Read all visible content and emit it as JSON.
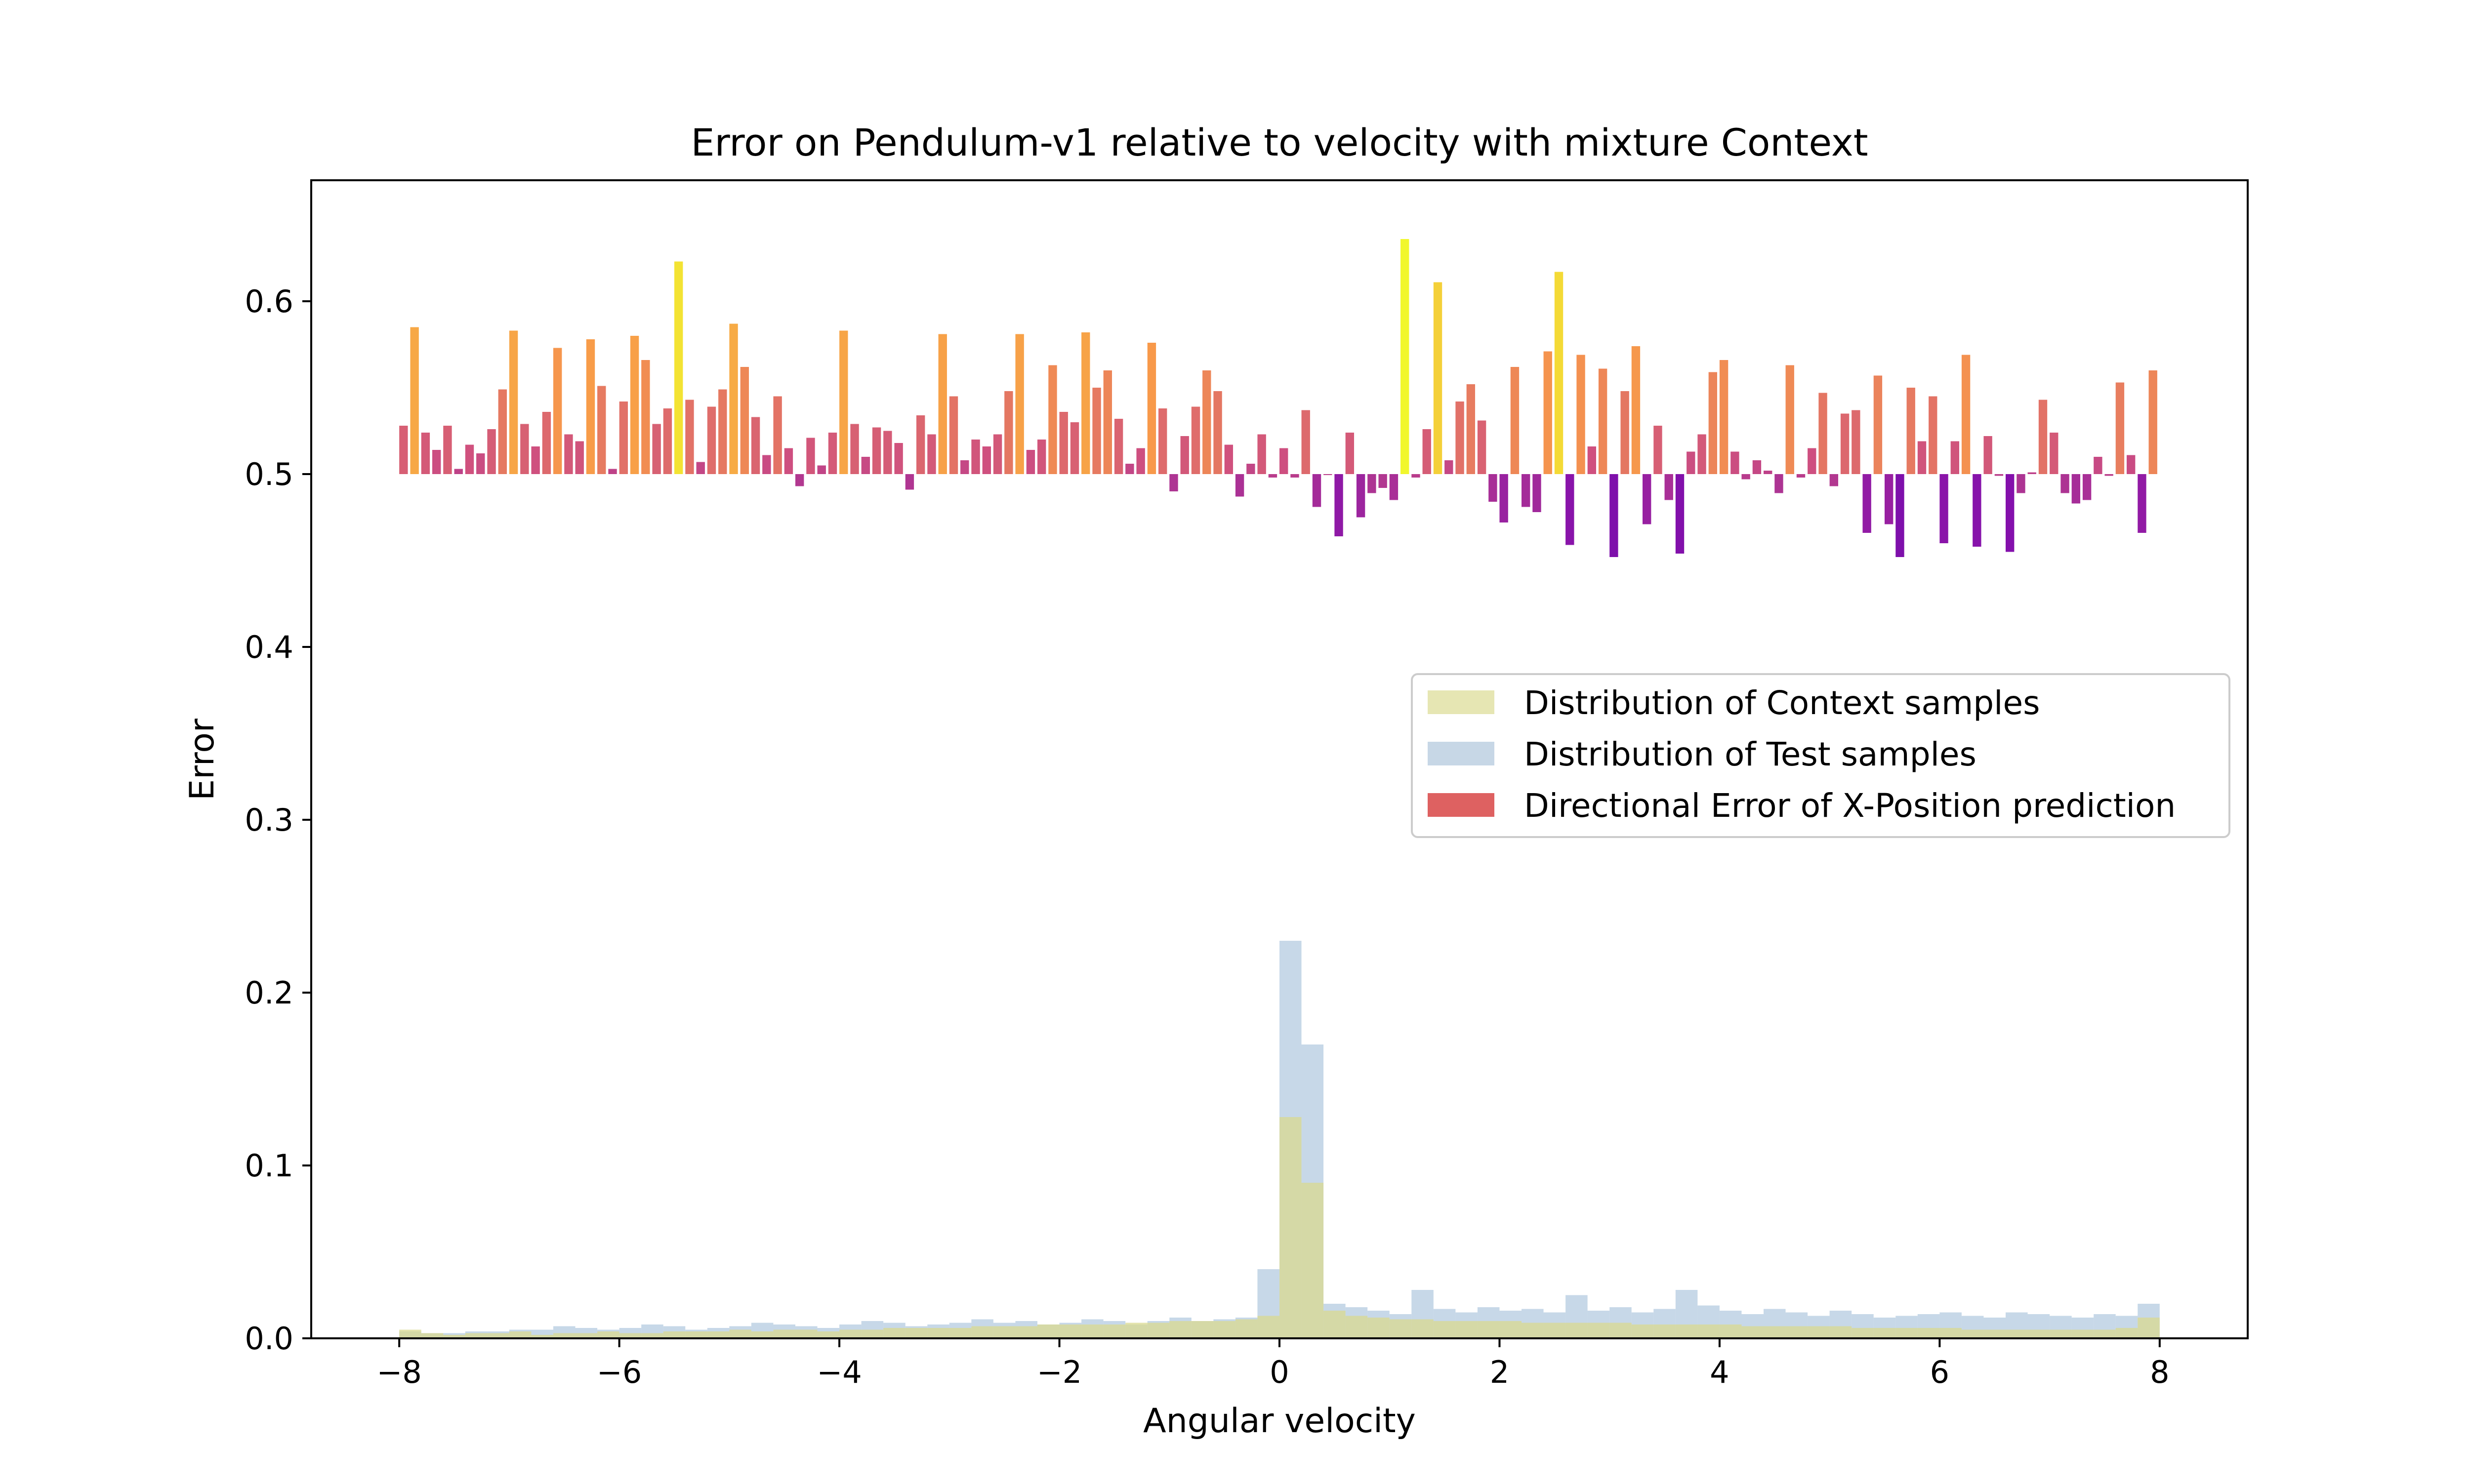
{
  "chart_data": {
    "type": "bar",
    "title": "Error on Pendulum-v1 relative to velocity with mixture Context",
    "xlabel": "Angular velocity",
    "ylabel": "Error",
    "xlim": [
      -8.8,
      8.8
    ],
    "ylim": [
      0.0,
      0.67
    ],
    "xticks": [
      -8,
      -6,
      -4,
      -2,
      0,
      2,
      4,
      6,
      8
    ],
    "xtick_labels": [
      "−8",
      "−6",
      "−4",
      "−2",
      "0",
      "2",
      "4",
      "6",
      "8"
    ],
    "yticks": [
      0.0,
      0.1,
      0.2,
      0.3,
      0.4,
      0.5,
      0.6
    ],
    "ytick_labels": [
      "0.0",
      "0.1",
      "0.2",
      "0.3",
      "0.4",
      "0.5",
      "0.6"
    ],
    "grid": false,
    "legend": {
      "position": "center-right",
      "entries": [
        {
          "label": "Distribution of Context samples",
          "color": "#e6e6b3"
        },
        {
          "label": "Distribution of Test samples",
          "color": "#c7d7e6"
        },
        {
          "label": "Directional Error of X-Position prediction",
          "color": "#de6161"
        }
      ]
    },
    "colors": {
      "context": "#d9d990",
      "test": "#a9c3dc",
      "colormap": "plasma",
      "colormap_range": [
        0.395,
        0.637
      ]
    },
    "series": [
      {
        "name": "Directional Error of X-Position prediction",
        "baseline": 0.5,
        "x_range": [
          -8.0,
          8.0
        ],
        "bar_count": 160,
        "values": [
          0.528,
          0.585,
          0.524,
          0.514,
          0.528,
          0.503,
          0.517,
          0.512,
          0.526,
          0.549,
          0.583,
          0.529,
          0.516,
          0.536,
          0.573,
          0.523,
          0.519,
          0.578,
          0.551,
          0.503,
          0.542,
          0.58,
          0.566,
          0.529,
          0.538,
          0.623,
          0.543,
          0.507,
          0.539,
          0.549,
          0.587,
          0.562,
          0.533,
          0.511,
          0.545,
          0.515,
          0.493,
          0.521,
          0.505,
          0.524,
          0.583,
          0.529,
          0.51,
          0.527,
          0.525,
          0.518,
          0.491,
          0.534,
          0.523,
          0.581,
          0.545,
          0.508,
          0.52,
          0.516,
          0.523,
          0.548,
          0.581,
          0.514,
          0.52,
          0.563,
          0.536,
          0.53,
          0.582,
          0.55,
          0.56,
          0.532,
          0.506,
          0.515,
          0.576,
          0.538,
          0.49,
          0.522,
          0.539,
          0.56,
          0.548,
          0.517,
          0.487,
          0.506,
          0.523,
          0.498,
          0.515,
          0.498,
          0.537,
          0.481,
          0.5,
          0.464,
          0.524,
          0.475,
          0.489,
          0.492,
          0.485,
          0.636,
          0.498,
          0.526,
          0.611,
          0.508,
          0.542,
          0.552,
          0.531,
          0.484,
          0.472,
          0.562,
          0.481,
          0.478,
          0.571,
          0.617,
          0.459,
          0.569,
          0.516,
          0.561,
          0.452,
          0.548,
          0.574,
          0.471,
          0.528,
          0.485,
          0.454,
          0.513,
          0.523,
          0.559,
          0.566,
          0.513,
          0.497,
          0.508,
          0.502,
          0.489,
          0.563,
          0.498,
          0.515,
          0.547,
          0.493,
          0.535,
          0.537,
          0.466,
          0.557,
          0.471,
          0.452,
          0.55,
          0.519,
          0.545,
          0.46,
          0.519,
          0.569,
          0.458,
          0.522,
          0.499,
          0.455,
          0.489,
          0.501,
          0.543,
          0.524,
          0.489,
          0.483,
          0.485,
          0.51,
          0.499,
          0.553,
          0.511,
          0.466,
          0.56
        ]
      },
      {
        "name": "Distribution of Test samples",
        "x_range": [
          -8.0,
          8.0
        ],
        "bar_count": 80,
        "values": [
          0.004,
          0.003,
          0.003,
          0.004,
          0.004,
          0.005,
          0.005,
          0.007,
          0.006,
          0.005,
          0.006,
          0.008,
          0.007,
          0.005,
          0.006,
          0.007,
          0.009,
          0.008,
          0.007,
          0.006,
          0.008,
          0.01,
          0.009,
          0.007,
          0.008,
          0.009,
          0.011,
          0.009,
          0.01,
          0.008,
          0.009,
          0.011,
          0.01,
          0.008,
          0.01,
          0.012,
          0.01,
          0.011,
          0.012,
          0.04,
          0.23,
          0.17,
          0.02,
          0.018,
          0.016,
          0.014,
          0.028,
          0.017,
          0.015,
          0.018,
          0.016,
          0.017,
          0.015,
          0.025,
          0.016,
          0.018,
          0.015,
          0.017,
          0.028,
          0.019,
          0.016,
          0.014,
          0.017,
          0.015,
          0.013,
          0.016,
          0.014,
          0.012,
          0.013,
          0.014,
          0.015,
          0.013,
          0.012,
          0.015,
          0.014,
          0.013,
          0.012,
          0.014,
          0.013,
          0.02
        ]
      },
      {
        "name": "Distribution of Context samples",
        "x_range": [
          -8.0,
          8.0
        ],
        "bar_count": 80,
        "values": [
          0.005,
          0.003,
          0.002,
          0.003,
          0.003,
          0.004,
          0.002,
          0.003,
          0.003,
          0.004,
          0.003,
          0.003,
          0.004,
          0.004,
          0.004,
          0.005,
          0.004,
          0.005,
          0.005,
          0.004,
          0.005,
          0.005,
          0.006,
          0.006,
          0.006,
          0.006,
          0.007,
          0.007,
          0.007,
          0.008,
          0.008,
          0.008,
          0.008,
          0.009,
          0.009,
          0.01,
          0.01,
          0.01,
          0.011,
          0.013,
          0.128,
          0.09,
          0.016,
          0.013,
          0.012,
          0.011,
          0.011,
          0.01,
          0.01,
          0.01,
          0.01,
          0.009,
          0.009,
          0.009,
          0.009,
          0.009,
          0.008,
          0.008,
          0.008,
          0.008,
          0.008,
          0.007,
          0.007,
          0.007,
          0.007,
          0.007,
          0.006,
          0.006,
          0.006,
          0.006,
          0.006,
          0.005,
          0.005,
          0.005,
          0.005,
          0.005,
          0.005,
          0.005,
          0.006,
          0.012
        ]
      }
    ]
  }
}
